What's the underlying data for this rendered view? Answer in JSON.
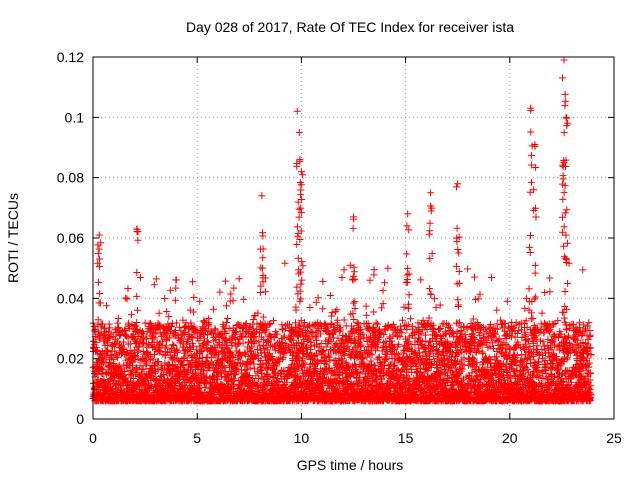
{
  "chart_data": {
    "type": "scatter",
    "title": "Day 028 of 2017, Rate Of TEC Index for receiver ista",
    "xlabel": "GPS time / hours",
    "ylabel": "ROTI / TECUs",
    "xlim": [
      0,
      25
    ],
    "ylim": [
      0,
      0.12
    ],
    "x_ticks": [
      0,
      5,
      10,
      15,
      20,
      25
    ],
    "x_tick_labels": [
      "0",
      "5",
      "10",
      "15",
      "20",
      "25"
    ],
    "y_ticks": [
      0,
      0.02,
      0.04,
      0.06,
      0.08,
      0.1,
      0.12
    ],
    "y_tick_labels": [
      "0",
      "0.02",
      "0.04",
      "0.06",
      "0.08",
      "0.1",
      "0.12"
    ],
    "grid": true,
    "marker": "+",
    "marker_color": "#ff0000",
    "series": [
      {
        "name": "ROTI",
        "points_note": "dense cloud of thousands of points; baseline 0.005-0.03 from 0 to 24 h with spikes",
        "spikes": [
          {
            "x": 0.3,
            "y": 0.061
          },
          {
            "x": 2.1,
            "y": 0.063
          },
          {
            "x": 8.1,
            "y": 0.074
          },
          {
            "x": 9.8,
            "y": 0.102
          },
          {
            "x": 9.9,
            "y": 0.095
          },
          {
            "x": 10.0,
            "y": 0.082
          },
          {
            "x": 12.5,
            "y": 0.067
          },
          {
            "x": 15.1,
            "y": 0.068
          },
          {
            "x": 16.2,
            "y": 0.075
          },
          {
            "x": 17.5,
            "y": 0.078
          },
          {
            "x": 21.0,
            "y": 0.103
          },
          {
            "x": 21.2,
            "y": 0.091
          },
          {
            "x": 22.6,
            "y": 0.119
          },
          {
            "x": 22.7,
            "y": 0.1
          },
          {
            "x": 22.6,
            "y": 0.085
          }
        ]
      }
    ]
  }
}
